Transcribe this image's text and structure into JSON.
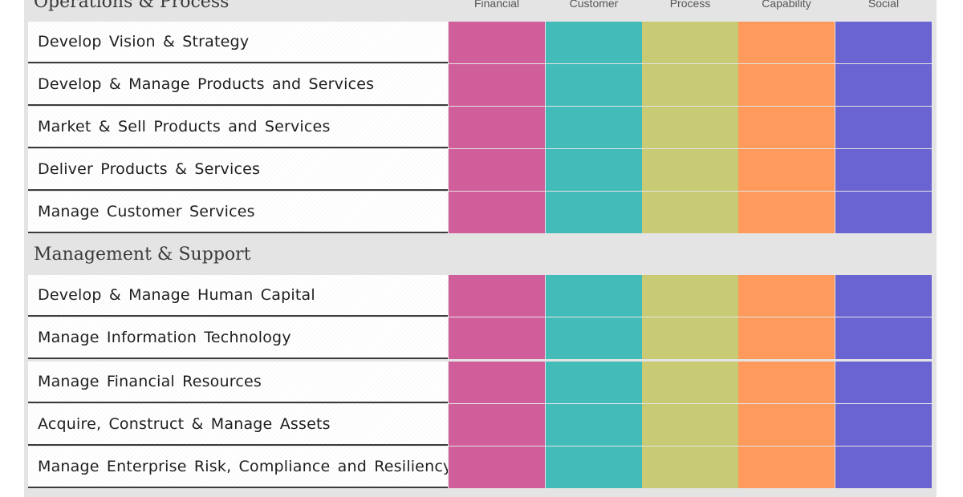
{
  "sections": [
    {
      "title": "Operations & Process",
      "rows": [
        "Develop Vision & Strategy",
        "Develop & Manage Products and Services",
        "Market & Sell Products and Services",
        "Deliver Products & Services",
        "Manage Customer Services"
      ]
    },
    {
      "title": "Management & Support",
      "rows": [
        "Develop & Manage Human Capital",
        "Manage Information Technology",
        "Manage Financial Resources",
        "Acquire, Construct & Manage Assets",
        "Manage Enterprise Risk, Compliance and Resiliency"
      ]
    }
  ],
  "columns": [
    {
      "label": "Financial",
      "color": "#d05e9b"
    },
    {
      "label": "Customer",
      "color": "#43bcb9"
    },
    {
      "label": "Process",
      "color": "#c8cb74"
    },
    {
      "label": "Capability",
      "color": "#fd9a5c"
    },
    {
      "label": "Social",
      "color": "#6a63d2"
    }
  ]
}
